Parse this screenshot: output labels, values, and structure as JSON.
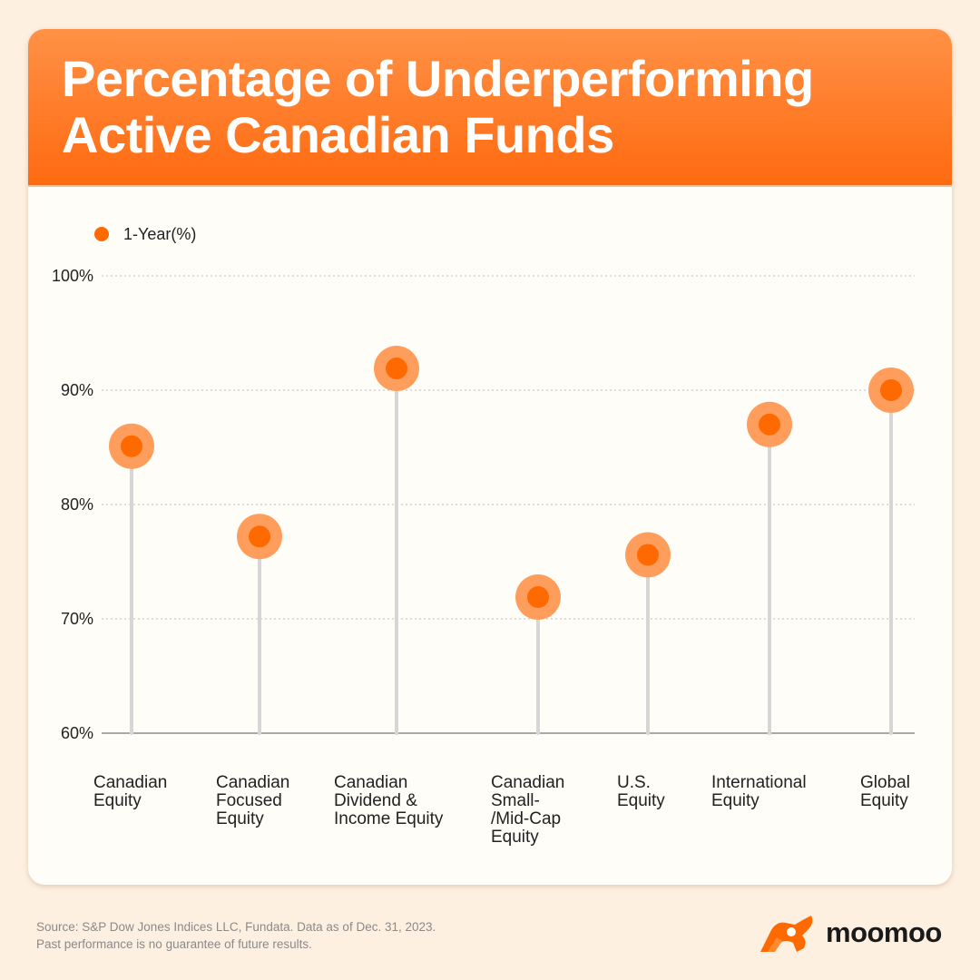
{
  "colors": {
    "accent": "#ff6a00",
    "halo": "#ff9d5c",
    "stem": "#d6d6d6",
    "background": "#fdf0e1"
  },
  "header": {
    "title_line1": "Percentage of Underperforming",
    "title_line2": "Active Canadian Funds"
  },
  "chart_data": {
    "type": "scatter",
    "title": "Percentage of Underperforming Active Canadian Funds",
    "xlabel": "",
    "ylabel": "",
    "ylim": [
      60,
      100
    ],
    "yticks": [
      "100%",
      "90%",
      "80%",
      "70%",
      "60%"
    ],
    "grid": true,
    "legend_position": "top-left",
    "categories": [
      "Canadian\nEquity",
      "Canadian\nFocused\nEquity",
      "Canadian\nDividend &\nIncome Equity",
      "Canadian\nSmall-\n/Mid-Cap\nEquity",
      "U.S.\nEquity",
      "International\nEquity",
      "Global\nEquity"
    ],
    "series": [
      {
        "name": "1-Year(%)",
        "values": [
          85.1,
          77.2,
          91.9,
          71.9,
          75.6,
          87.0,
          90.0
        ]
      }
    ]
  },
  "footer": {
    "source_line1": "Source: S&P Dow Jones Indices LLC, Fundata. Data as of Dec. 31, 2023.",
    "source_line2": "Past performance is no guarantee of future results."
  },
  "brand": {
    "name": "moomoo",
    "icon": "moomoo-bull-logo-icon"
  }
}
